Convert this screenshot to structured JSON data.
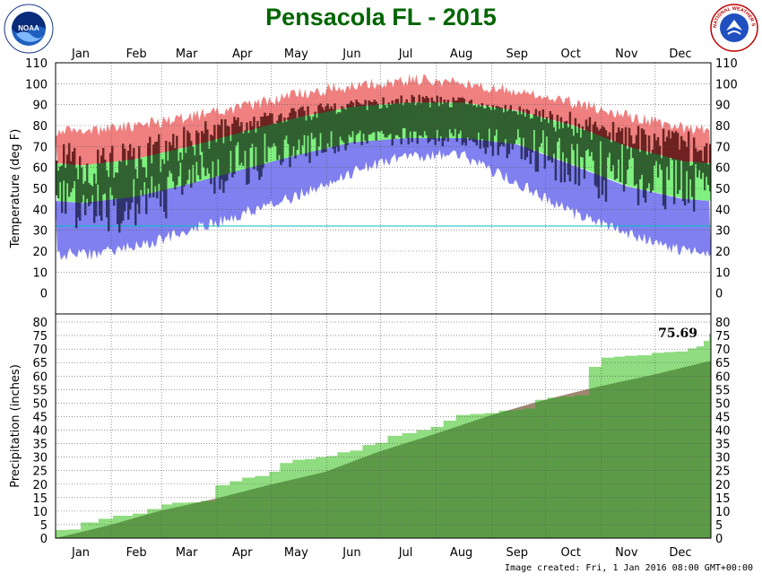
{
  "title": "Pensacola FL - 2015",
  "footer": "Image created: Fri, 1 Jan 2016 08:00 GMT+00:00",
  "months": [
    "Jan",
    "Feb",
    "Mar",
    "Apr",
    "May",
    "Jun",
    "Jul",
    "Aug",
    "Sep",
    "Oct",
    "Nov",
    "Dec"
  ],
  "logos": {
    "left": "NOAA",
    "right": "NATIONAL WEATHER SERVICE"
  },
  "colors": {
    "record_high": "#f08080",
    "normal_band": "#80f080",
    "record_low": "#8080f0",
    "actual_range": "#306030",
    "actual_above": "#702020",
    "actual_below": "#303070",
    "freeze_line": "#00c0c0",
    "precip_normal": "#5c9a48",
    "precip_actual": "#90dc80",
    "precip_deficit": "#a08670"
  },
  "chart_data": [
    {
      "type": "area",
      "name": "temperature",
      "ylabel": "Temperature (deg F)",
      "ylim": [
        -10,
        110
      ],
      "yticks": [
        0,
        10,
        20,
        30,
        40,
        50,
        60,
        70,
        80,
        90,
        100,
        110
      ],
      "freeze_line": 32,
      "grid": true,
      "normals_by_month": {
        "months": [
          "Jan",
          "Feb",
          "Mar",
          "Apr",
          "May",
          "Jun",
          "Jul",
          "Aug",
          "Sep",
          "Oct",
          "Nov",
          "Dec"
        ],
        "normal_high": [
          61,
          64,
          70,
          77,
          84,
          89,
          91,
          91,
          87,
          80,
          70,
          63
        ],
        "normal_low": [
          43,
          46,
          52,
          59,
          66,
          72,
          74,
          74,
          71,
          61,
          51,
          45
        ],
        "record_high": [
          77,
          80,
          84,
          89,
          95,
          99,
          102,
          101,
          96,
          91,
          85,
          79
        ],
        "record_low": [
          18,
          22,
          30,
          38,
          47,
          58,
          66,
          65,
          52,
          38,
          28,
          20
        ]
      },
      "actual_by_month": {
        "months": [
          "Jan",
          "Feb",
          "Mar",
          "Apr",
          "May",
          "Jun",
          "Jul",
          "Aug",
          "Sep",
          "Oct",
          "Nov",
          "Dec"
        ],
        "avg_high": [
          60,
          63,
          72,
          80,
          85,
          90,
          92,
          91,
          87,
          80,
          74,
          70
        ],
        "avg_low": [
          42,
          43,
          56,
          63,
          68,
          74,
          75,
          74,
          71,
          62,
          56,
          55
        ],
        "max_high": [
          72,
          75,
          84,
          86,
          90,
          94,
          96,
          94,
          90,
          88,
          82,
          80
        ],
        "min_low": [
          25,
          24,
          38,
          46,
          58,
          68,
          70,
          68,
          60,
          44,
          34,
          36
        ]
      }
    },
    {
      "type": "area",
      "name": "precipitation",
      "ylabel": "Precipitation (inches)",
      "ylim": [
        0,
        83
      ],
      "yticks": [
        0,
        5,
        10,
        15,
        20,
        25,
        30,
        35,
        40,
        45,
        50,
        55,
        60,
        65,
        70,
        75,
        80
      ],
      "grid": true,
      "annotation": "75.69",
      "normal_cumulative": {
        "day": [
          1,
          31,
          59,
          90,
          120,
          151,
          181,
          212,
          243,
          273,
          304,
          334,
          365
        ],
        "inches": [
          0,
          4.8,
          10.1,
          14.6,
          19.7,
          24.5,
          32.0,
          38.5,
          45.4,
          51.1,
          56.2,
          60.5,
          65.5
        ]
      },
      "actual_cumulative": {
        "day": [
          1,
          8,
          15,
          25,
          33,
          44,
          52,
          60,
          66,
          75,
          82,
          90,
          98,
          105,
          112,
          120,
          126,
          133,
          140,
          146,
          152,
          158,
          165,
          172,
          179,
          186,
          194,
          202,
          210,
          217,
          224,
          232,
          240,
          248,
          256,
          262,
          268,
          275,
          282,
          290,
          298,
          305,
          312,
          318,
          325,
          333,
          340,
          346,
          353,
          358,
          362,
          365
        ],
        "inches": [
          3.0,
          3.2,
          5.8,
          7.2,
          8.3,
          9.1,
          10.8,
          12.5,
          13.1,
          13.3,
          13.8,
          19.6,
          21.1,
          22.4,
          23.0,
          24.6,
          27.8,
          29.0,
          29.3,
          30.0,
          30.4,
          31.8,
          32.4,
          34.5,
          35.3,
          37.9,
          38.9,
          40.0,
          41.2,
          43.5,
          45.6,
          46.0,
          46.3,
          47.2,
          47.6,
          48.0,
          51.2,
          52.0,
          52.4,
          52.9,
          63.4,
          66.8,
          67.2,
          67.5,
          67.7,
          68.6,
          68.9,
          69.1,
          70.2,
          71.0,
          73.0,
          75.69
        ]
      }
    }
  ]
}
